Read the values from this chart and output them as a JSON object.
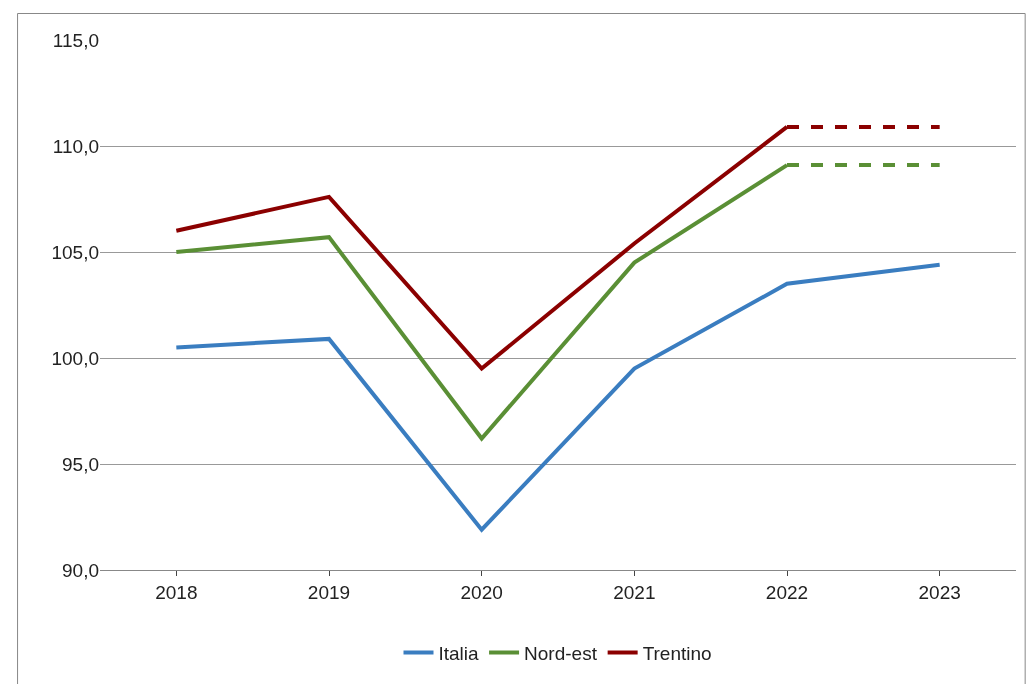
{
  "chart_data": {
    "type": "line",
    "categories": [
      "2018",
      "2019",
      "2020",
      "2021",
      "2022",
      "2023"
    ],
    "series": [
      {
        "name": "Italia",
        "color": "#3a7dc0",
        "values": [
          100.5,
          100.9,
          91.9,
          99.5,
          103.5,
          104.4
        ]
      },
      {
        "name": "Nord-est",
        "color": "#5a8f35",
        "values": [
          105.0,
          105.7,
          96.2,
          104.5,
          109.1,
          null
        ]
      },
      {
        "name": "Trentino",
        "color": "#8b0000",
        "values": [
          106.0,
          107.6,
          99.5,
          105.4,
          110.9,
          null
        ]
      },
      {
        "color": "#5a8f35",
        "line_style": "dashed",
        "values": [
          null,
          null,
          null,
          null,
          109.1,
          109.1
        ]
      },
      {
        "color": "#8b0000",
        "line_style": "dashed",
        "values": [
          null,
          null,
          null,
          null,
          110.9,
          110.9
        ]
      }
    ],
    "ylim": [
      90,
      115
    ],
    "yticks": [
      {
        "value": 90,
        "label": "90,0"
      },
      {
        "value": 95,
        "label": "95,0"
      },
      {
        "value": 100,
        "label": "100,0"
      },
      {
        "value": 105,
        "label": "105,0"
      },
      {
        "value": 110,
        "label": "110,0"
      },
      {
        "value": 115,
        "label": "115,0"
      }
    ],
    "grid": "y",
    "legend": "bottom",
    "line_style": "solid",
    "marker": "none"
  }
}
